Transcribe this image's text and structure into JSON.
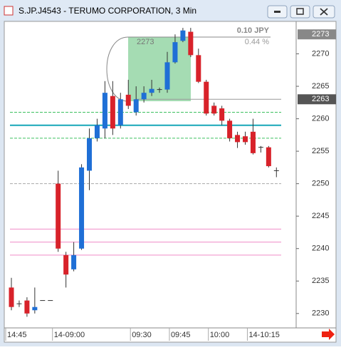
{
  "window_title": "S.JP.J4543 - TERUMO CORPORATION, 3 Min",
  "chart_data": {
    "type": "candlestick",
    "categories": [
      "14:45",
      null,
      null,
      null,
      null,
      null,
      "14-09:00",
      null,
      null,
      null,
      null,
      null,
      null,
      null,
      null,
      null,
      "09:30",
      null,
      null,
      null,
      null,
      "09:45",
      null,
      null,
      null,
      null,
      "10:00",
      null,
      null,
      null,
      null,
      "14-10:15",
      null,
      null,
      null
    ],
    "open": [
      2234,
      2231.5,
      2232,
      2230.5,
      2232,
      2232,
      2250,
      2239,
      2236.8,
      2240,
      2252,
      2257,
      2258.5,
      2263.5,
      2259,
      2263.7,
      2261,
      2263,
      2264,
      2264.5,
      2264.5,
      2268.7,
      2272,
      2273.4,
      2269.8,
      2265.7,
      2262,
      2261.6,
      2259.7,
      2257.5,
      2257.3,
      2258,
      2255.6,
      2255.6,
      2252
    ],
    "high": [
      2235.5,
      2232,
      2232.5,
      2234,
      2232,
      2232,
      2252,
      2239.5,
      2241,
      2253,
      2258.5,
      2260,
      2265.8,
      2265.8,
      2264,
      2266,
      2265,
      2265,
      2266,
      2264.8,
      2270.3,
      2273,
      2274,
      2274,
      2270.8,
      2266,
      2262.5,
      2262,
      2260,
      2258,
      2258,
      2260,
      2255.8,
      2255.8,
      2252.5
    ],
    "low": [
      2230.5,
      2231,
      2229.5,
      2230,
      2232,
      2232,
      2239.5,
      2234,
      2236.5,
      2239.8,
      2249,
      2256.5,
      2257,
      2257.5,
      2258.5,
      2261.5,
      2260.5,
      2262.5,
      2263.5,
      2264,
      2264,
      2268.5,
      2271.8,
      2269.5,
      2265.5,
      2260.5,
      2260.5,
      2259,
      2256.5,
      2255.5,
      2256,
      2254.5,
      2254.8,
      2252.5,
      2251
    ],
    "close": [
      2231,
      2231.5,
      2230,
      2231,
      2232,
      2232,
      2240,
      2236,
      2239,
      2252.5,
      2257,
      2259,
      2264,
      2258.5,
      2263,
      2262,
      2263,
      2264,
      2264.6,
      2264.5,
      2268.7,
      2271.8,
      2273.6,
      2269.8,
      2265.7,
      2260.8,
      2260.8,
      2259.7,
      2257,
      2256.4,
      2256.4,
      2254.7,
      2255.6,
      2252.7,
      2252
    ],
    "up_color": "#1f6fd6",
    "down_color": "#d8222a",
    "ylim": [
      2228,
      2275
    ],
    "yticks": [
      2230,
      2235,
      2240,
      2245,
      2250,
      2255,
      2260,
      2265,
      2270
    ],
    "price_labels": [
      2273,
      2263
    ],
    "levels": [
      {
        "value": 2259,
        "color": "#17a7b8",
        "style": "solid"
      },
      {
        "value": 2261,
        "color": "#3cc060",
        "style": "dashed"
      },
      {
        "value": 2257,
        "color": "#3cc060",
        "style": "dashed"
      },
      {
        "value": 2250,
        "color": "#aaaaaa",
        "style": "dashed"
      },
      {
        "value": 2243,
        "color": "#f08cc8",
        "style": "solid"
      },
      {
        "value": 2241,
        "color": "#f08cc8",
        "style": "solid"
      },
      {
        "value": 2239,
        "color": "#f08cc8",
        "style": "solid"
      },
      {
        "value": 2263,
        "color": "#999999",
        "style": "solid"
      }
    ],
    "annotation": {
      "price": 2273,
      "change": "0.10 JPY",
      "change_pct": "0.44 %"
    }
  }
}
